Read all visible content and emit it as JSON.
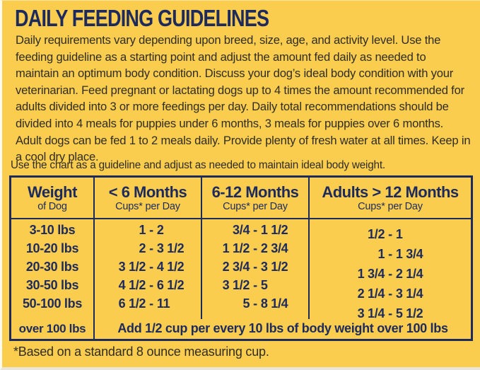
{
  "colors": {
    "background": "#facd4e",
    "navy": "#1d2a5e",
    "body_text": "#2f2c26"
  },
  "title": "DAILY FEEDING GUIDELINES",
  "intro": "Daily requirements vary depending upon breed, size, age, and activity level. Use the feeding guideline as a starting point and adjust the amount fed daily as needed to maintain an optimum body condition. Discuss your dog’s ideal body condition with your veterinarian. Feed pregnant or lactating dogs up to 4 times the amount recommended for adults divided into 3 or more feedings per day. Daily total recommendations should be divided into 4 meals for puppies under 6 months, 3 meals for puppies over 6 months. Adult dogs can be fed 1 to 2 meals daily. Provide plenty of fresh water at all times. Keep in a cool dry place.",
  "chart_note": "Use the chart as a guideline and adjust as needed to maintain ideal body weight.",
  "table": {
    "headers": [
      {
        "main": "Weight",
        "sub": "of Dog"
      },
      {
        "main": "< 6 Months",
        "sub": "Cups* per Day"
      },
      {
        "main": "6-12 Months",
        "sub": "Cups* per Day"
      },
      {
        "main": "Adults > 12 Months",
        "sub": "Cups* per Day"
      }
    ],
    "weights": [
      "3-10 lbs",
      "10-20 lbs",
      "20-30 lbs",
      "30-50 lbs",
      "50-100 lbs"
    ],
    "under_6_months": [
      "1 - 2",
      "2 - 3 1/2",
      "3 1/2 - 4 1/2",
      "4 1/2 - 6 1/2",
      "6 1/2 - 11"
    ],
    "six_to_12_months": [
      "3/4 - 1 1/2",
      "1 1/2 - 2 3/4",
      "2 3/4 - 3 1/2",
      "3 1/2 - 5",
      "5 - 8 1/4"
    ],
    "adults_over_12_months": [
      "1/2 - 1",
      "1 - 1 3/4",
      "1 3/4 - 2 1/4",
      "2 1/4 - 3 1/4",
      "3 1/4 - 5 1/2"
    ],
    "last_row": {
      "weight": "over 100 lbs",
      "note": "Add 1/2 cup per every 10 lbs of body weight over 100 lbs"
    }
  },
  "footnote": "*Based on a standard 8 ounce measuring cup."
}
